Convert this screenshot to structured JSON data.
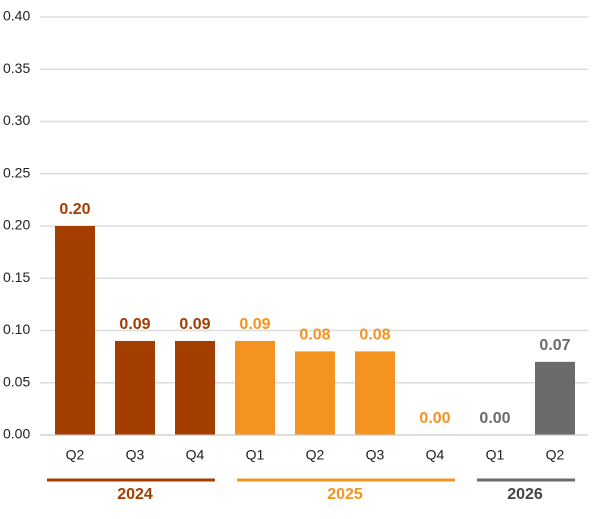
{
  "chart_data": {
    "type": "bar",
    "groups": [
      {
        "name": "2024",
        "color": "#a33d00",
        "categories": [
          "Q2",
          "Q3",
          "Q4"
        ],
        "values": [
          0.2,
          0.09,
          0.09
        ],
        "value_labels": [
          "0.20",
          "0.09",
          "0.09"
        ]
      },
      {
        "name": "2025",
        "color": "#f4931f",
        "categories": [
          "Q1",
          "Q2",
          "Q3",
          "Q4"
        ],
        "values": [
          0.09,
          0.08,
          0.08,
          0.0
        ],
        "value_labels": [
          "0.09",
          "0.08",
          "0.08",
          "0.00"
        ]
      },
      {
        "name": "2026",
        "color": "#6b6b6b",
        "categories": [
          "Q1",
          "Q2"
        ],
        "values": [
          0.0,
          0.07
        ],
        "value_labels": [
          "0.00",
          "0.07"
        ]
      }
    ],
    "ylim": [
      0,
      0.4
    ],
    "yticks": [
      {
        "value": 0,
        "label": "0.00"
      },
      0.05,
      {
        "value": 0.1,
        "label": "0.10"
      },
      0.15,
      {
        "value": 0.2,
        "label": "0.20"
      },
      0.25,
      {
        "value": 0.3,
        "label": "0.30"
      },
      0.35,
      {
        "value": 0.4,
        "label": "0.40"
      }
    ],
    "grid": true
  }
}
